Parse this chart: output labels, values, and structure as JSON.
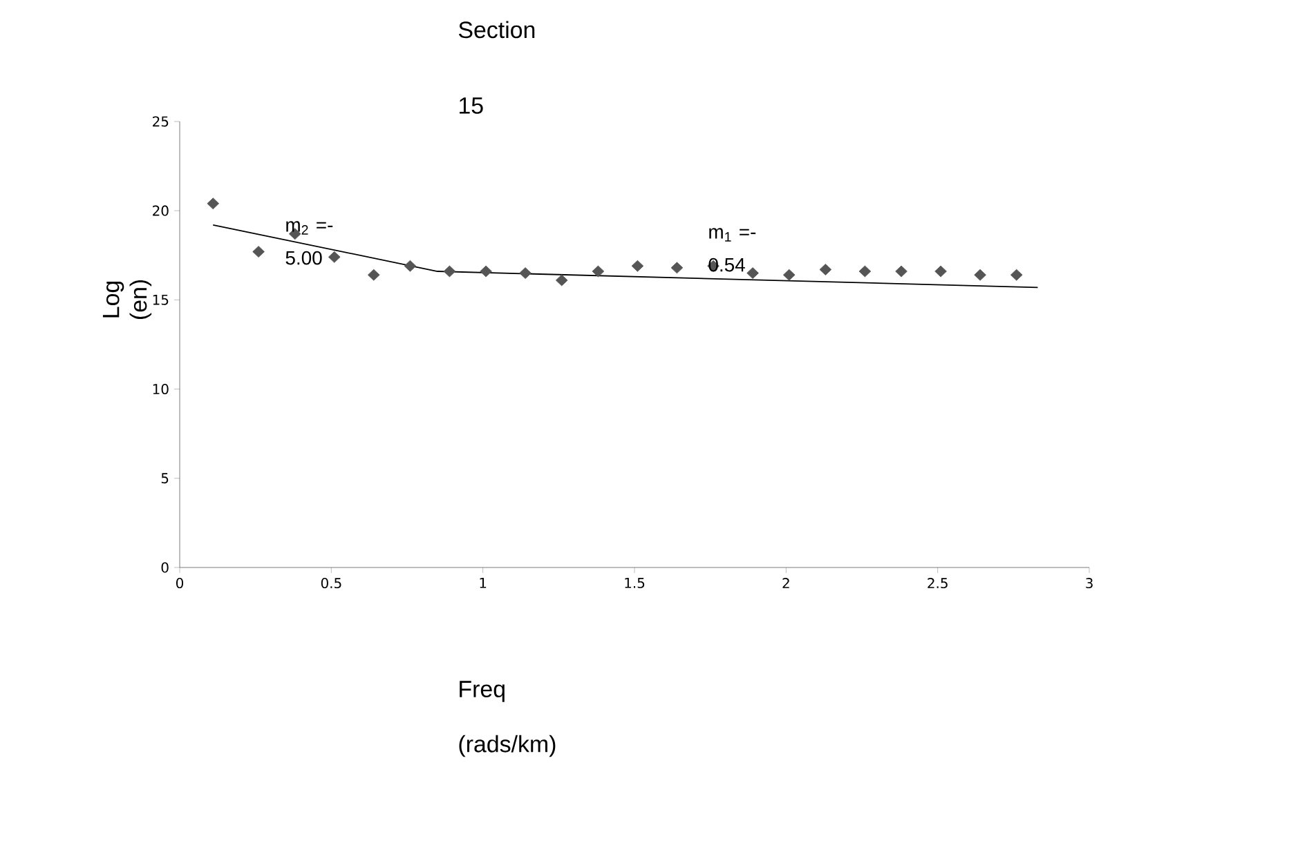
{
  "chart_data": {
    "type": "scatter",
    "title": "Section 15",
    "xlabel": "Freq (rads/km)",
    "ylabel": "Log (en)",
    "xlim": [
      0,
      3
    ],
    "xticks": [
      0,
      0.5,
      1,
      1.5,
      2,
      2.5,
      3
    ],
    "ylim": [
      0,
      25
    ],
    "yticks": [
      0,
      5,
      10,
      15,
      20,
      25
    ],
    "grid": false,
    "series": [
      {
        "color": "#555555",
        "marker": "diamond",
        "x": [
          0.11,
          0.26,
          0.38,
          0.51,
          0.64,
          0.76,
          0.89,
          1.01,
          1.14,
          1.26,
          1.38,
          1.51,
          1.64,
          1.76,
          1.89,
          2.01,
          2.13,
          2.26,
          2.38,
          2.51,
          2.64,
          2.76
        ],
        "values": [
          20.4,
          17.7,
          18.7,
          17.4,
          16.4,
          16.9,
          16.6,
          16.6,
          16.5,
          16.1,
          16.6,
          16.9,
          16.8,
          16.9,
          16.5,
          16.4,
          16.7,
          16.6,
          16.6,
          16.6,
          16.4,
          16.4
        ]
      },
      {
        "type": "line",
        "marker": "none",
        "color": "#000000",
        "x": [
          0.11,
          0.85,
          2.83
        ],
        "values": [
          19.2,
          16.6,
          15.7
        ]
      }
    ],
    "annotations": [
      "m$_{2}$ =-5.00",
      "m$_{1}$ =-0.54"
    ]
  }
}
